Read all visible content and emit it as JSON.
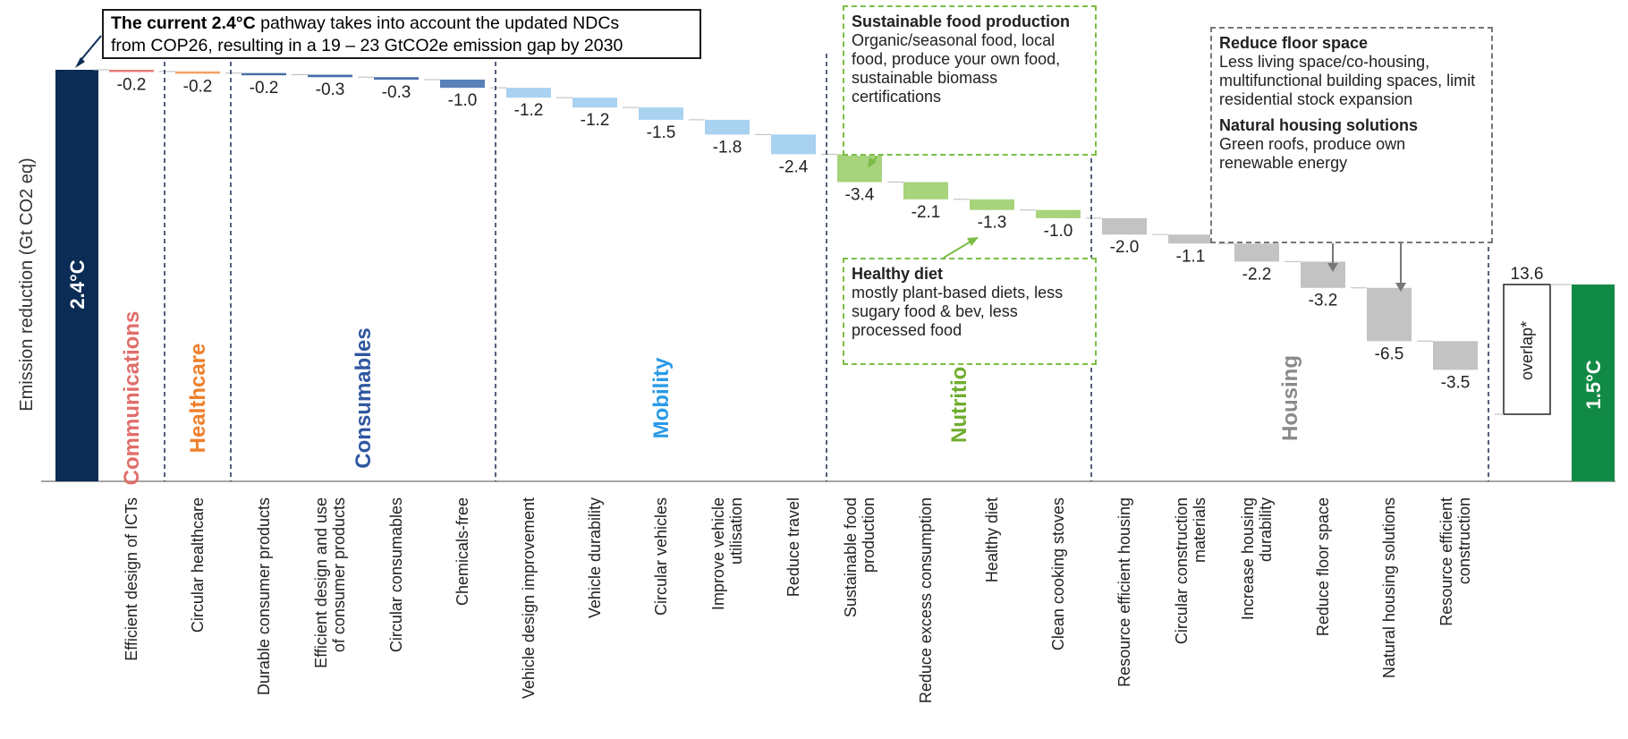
{
  "chart_data": {
    "type": "waterfall",
    "ylabel": "Emission reduction (Gt CO2 eq)",
    "start": {
      "label": "2.4°C",
      "color": "#0b2d55"
    },
    "end": {
      "label": "1.5°C",
      "color": "#108a44"
    },
    "overlap": {
      "label": "overlap*",
      "value": "13.6"
    },
    "steps": [
      {
        "category": "Efficient design of ICTs",
        "value": -0.2,
        "label": "-0.2",
        "group": "Communications",
        "color": "#e87f7c"
      },
      {
        "category": "Circular healthcare",
        "value": -0.2,
        "label": "-0.2",
        "group": "Healthcare",
        "color": "#f0a064"
      },
      {
        "category": "Durable consumer products",
        "value": -0.2,
        "label": "-0.2",
        "group": "Consumables",
        "color": "#4a6ea8"
      },
      {
        "category": "Efficient design and use of consumer products",
        "value": -0.3,
        "label": "-0.3",
        "group": "Consumables",
        "color": "#4a6ea8"
      },
      {
        "category": "Circular consumables",
        "value": -0.3,
        "label": "-0.3",
        "group": "Consumables",
        "color": "#4a6ea8"
      },
      {
        "category": "Chemicals-free",
        "value": -1.0,
        "label": "-1.0",
        "group": "Consumables",
        "color": "#5a80b8"
      },
      {
        "category": "Vehicle design improvement",
        "value": -1.2,
        "label": "-1.2",
        "group": "Mobility",
        "color": "#a9d1f0"
      },
      {
        "category": "Vehicle durability",
        "value": -1.2,
        "label": "-1.2",
        "group": "Mobility",
        "color": "#a9d1f0"
      },
      {
        "category": "Circular vehicles",
        "value": -1.5,
        "label": "-1.5",
        "group": "Mobility",
        "color": "#a9d1f0"
      },
      {
        "category": "Improve vehicle utilisation",
        "value": -1.8,
        "label": "-1.8",
        "group": "Mobility",
        "color": "#a9d1f0"
      },
      {
        "category": "Reduce travel",
        "value": -2.4,
        "label": "-2.4",
        "group": "Mobility",
        "color": "#a9d1f0"
      },
      {
        "category": "Sustainable food production",
        "value": -3.4,
        "label": "-3.4",
        "group": "Nutrition",
        "color": "#a7d37c"
      },
      {
        "category": "Reduce excess consumption",
        "value": -2.1,
        "label": "-2.1",
        "group": "Nutrition",
        "color": "#a7d37c"
      },
      {
        "category": "Healthy diet",
        "value": -1.3,
        "label": "-1.3",
        "group": "Nutrition",
        "color": "#a7d37c"
      },
      {
        "category": "Clean cooking stoves",
        "value": -1.0,
        "label": "-1.0",
        "group": "Nutrition",
        "color": "#a7d37c"
      },
      {
        "category": "Resource efficient housing",
        "value": -2.0,
        "label": "-2.0",
        "group": "Housing",
        "color": "#c3c3c3"
      },
      {
        "category": "Circular construction materials",
        "value": -1.1,
        "label": "-1.1",
        "group": "Housing",
        "color": "#c3c3c3"
      },
      {
        "category": "Increase housing durability",
        "value": -2.2,
        "label": "-2.2",
        "group": "Housing",
        "color": "#c3c3c3"
      },
      {
        "category": "Reduce floor space",
        "value": -3.2,
        "label": "-3.2",
        "group": "Housing",
        "color": "#c3c3c3"
      },
      {
        "category": "Natural housing solutions",
        "value": -6.5,
        "label": "-6.5",
        "group": "Housing",
        "color": "#c3c3c3"
      },
      {
        "category": "Resource efficient construction",
        "value": -3.5,
        "label": "-3.5",
        "group": "Housing",
        "color": "#c3c3c3"
      }
    ],
    "groups": [
      {
        "name": "Communications",
        "color": "#e06e6b"
      },
      {
        "name": "Healthcare",
        "color": "#f07f2a"
      },
      {
        "name": "Consumables",
        "color": "#2f57a0"
      },
      {
        "name": "Mobility",
        "color": "#2a9ae8"
      },
      {
        "name": "Nutrition",
        "color": "#6fad2f"
      },
      {
        "name": "Housing",
        "color": "#8a8a8a"
      }
    ],
    "grid": false
  },
  "annotations": {
    "pathway_bold": "The current 2.4°C",
    "pathway_rest": "pathway takes into account the updated NDCs",
    "pathway_line2": "from COP26, resulting in a 19 – 23 GtCO2e emission gap by 2030",
    "sustainable_food_title": "Sustainable food production",
    "sustainable_food_text": "Organic/seasonal food, local food, produce your own food, sustainable biomass certifications",
    "healthy_diet_title": "Healthy diet",
    "healthy_diet_text": "mostly plant-based diets, less sugary food & bev, less processed food",
    "floor_space_title": "Reduce floor space",
    "floor_space_text": "Less living space/co-housing, multifunctional building spaces, limit residential stock expansion",
    "natural_housing_title": "Natural housing solutions",
    "natural_housing_text": "Green roofs, produce own renewable energy"
  }
}
